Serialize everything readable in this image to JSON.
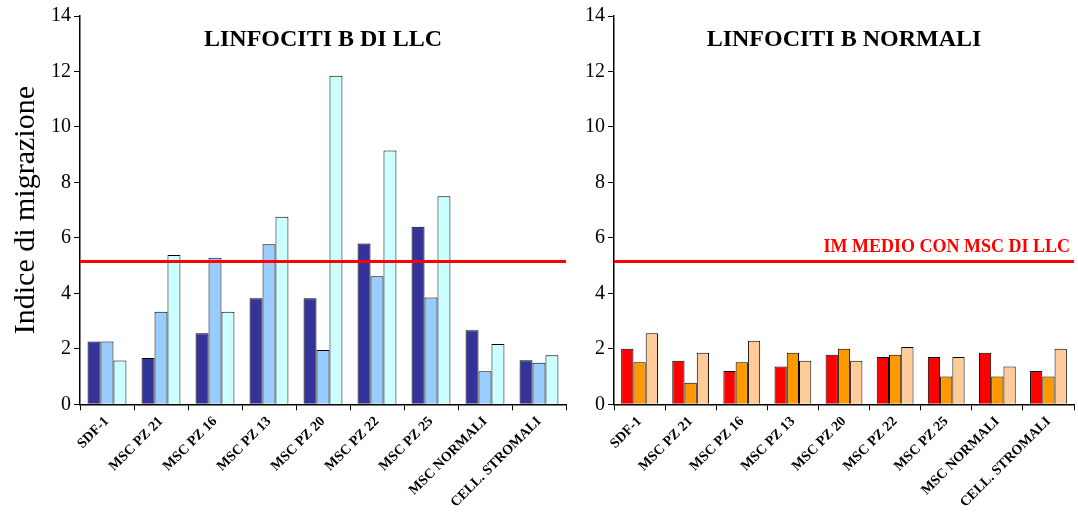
{
  "chart_data": [
    {
      "type": "bar",
      "title": "LINFOCITI B DI LLC",
      "ylabel": "Indice di migrazione",
      "categories": [
        "SDF-1",
        "MSC PZ 21",
        "MSC PZ 16",
        "MSC PZ 13",
        "MSC PZ 20",
        "MSC PZ 22",
        "MSC PZ 25",
        "MSC NORMALI",
        "CELL. STROMALI"
      ],
      "series": [
        {
          "color": "#333399",
          "values": [
            2.26,
            1.67,
            2.56,
            3.82,
            3.82,
            5.8,
            6.4,
            2.67,
            1.59
          ]
        },
        {
          "color": "#99ccff",
          "values": [
            2.26,
            3.34,
            5.28,
            5.77,
            1.96,
            4.62,
            3.85,
            1.19,
            1.5
          ]
        },
        {
          "color": "#ccffff",
          "values": [
            1.58,
            5.38,
            3.34,
            6.76,
            11.85,
            9.15,
            7.5,
            2.17,
            1.77
          ]
        }
      ],
      "ylim": [
        0,
        14
      ],
      "yticks": [
        0,
        2,
        4,
        6,
        8,
        10,
        12,
        14
      ],
      "grid": false,
      "legend": false,
      "ref_lines": [
        {
          "axis": "y",
          "value": 5.15,
          "label": null,
          "color": "#ff0000"
        }
      ]
    },
    {
      "type": "bar",
      "title": "LINFOCITI B NORMALI",
      "categories": [
        "SDF-1",
        "MSC PZ 21",
        "MSC PZ 16",
        "MSC PZ 13",
        "MSC PZ 20",
        "MSC PZ 22",
        "MSC PZ 25",
        "MSC NORMALI",
        "CELL. STROMALI"
      ],
      "series": [
        {
          "color": "#ff0000",
          "values": [
            2.0,
            1.57,
            1.2,
            1.36,
            1.79,
            1.71,
            1.71,
            1.86,
            1.2
          ]
        },
        {
          "color": "#ff9900",
          "values": [
            1.52,
            0.78,
            1.52,
            1.86,
            2.0,
            1.79,
            1.0,
            1.0,
            1.0
          ]
        },
        {
          "color": "#ffcc99",
          "values": [
            2.56,
            1.86,
            2.29,
            1.57,
            1.57,
            2.07,
            1.71,
            1.36,
            2.0
          ]
        }
      ],
      "ylim": [
        0,
        14
      ],
      "yticks": [
        0,
        2,
        4,
        6,
        8,
        10,
        12,
        14
      ],
      "grid": false,
      "legend": false,
      "ref_lines": [
        {
          "axis": "y",
          "value": 5.15,
          "label": "IM MEDIO CON MSC DI LLC",
          "color": "#ff0000"
        }
      ]
    }
  ]
}
